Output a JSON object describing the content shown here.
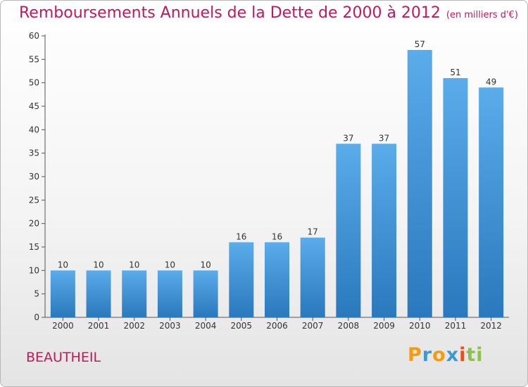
{
  "chart_data": {
    "type": "bar",
    "title": "Remboursements Annuels de la Dette de 2000 à 2012",
    "unit_label": "(en milliers d'€)",
    "xlabel": "",
    "ylabel": "",
    "categories": [
      "2000",
      "2001",
      "2002",
      "2003",
      "2004",
      "2005",
      "2006",
      "2007",
      "2008",
      "2009",
      "2010",
      "2011",
      "2012"
    ],
    "values": [
      10,
      10,
      10,
      10,
      10,
      16,
      16,
      17,
      37,
      37,
      57,
      51,
      49
    ],
    "ylim": [
      0,
      60
    ],
    "yticks": [
      0,
      5,
      10,
      15,
      20,
      25,
      30,
      35,
      40,
      45,
      50,
      55,
      60
    ],
    "grid": false,
    "legend": "none"
  },
  "footer": {
    "commune": "BEAUTHEIL",
    "logo_text": "Proxiti",
    "logo_letters": [
      "P",
      "r",
      "o",
      "x",
      "i",
      "ti"
    ]
  },
  "colors": {
    "title": "#c2185b",
    "bar_top": "#5aacea",
    "bar_bottom": "#2a78bd",
    "axis": "#555555"
  }
}
